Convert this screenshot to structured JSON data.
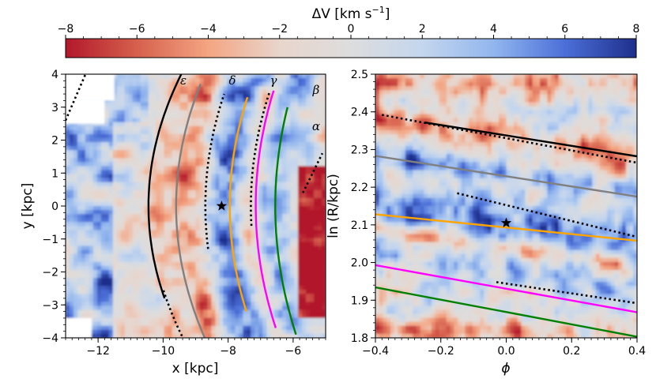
{
  "chart_data": [
    {
      "type": "colorbar",
      "label": "ΔV [km s⁻¹]",
      "label_main": "ΔV [km s",
      "label_exp": "−1",
      "label_close": "]",
      "range": [
        -8,
        8
      ],
      "ticks": [
        -8,
        -6,
        -4,
        -2,
        0,
        2,
        4,
        6,
        8
      ],
      "tick_labels": [
        "−8",
        "−6",
        "−4",
        "−2",
        "0",
        "2",
        "4",
        "6",
        "8"
      ],
      "colormap": [
        "#b2182b",
        "#d6604d",
        "#f4a582",
        "#e8d5cc",
        "#dddddd",
        "#c4d6ee",
        "#92b6ee",
        "#4b6fd8",
        "#1f2f8c"
      ]
    },
    {
      "type": "heatmap",
      "xlabel": "x [kpc]",
      "ylabel": "y [kpc]",
      "xlim": [
        -13,
        -5
      ],
      "ylim": [
        -4,
        4
      ],
      "xticks": [
        -12,
        -10,
        -8,
        -6
      ],
      "xtick_labels": [
        "−12",
        "−10",
        "−8",
        "−6"
      ],
      "yticks": [
        -4,
        -3,
        -2,
        -1,
        0,
        1,
        2,
        3,
        4
      ],
      "ytick_labels": [
        "−4",
        "−3",
        "−2",
        "−1",
        "0",
        "1",
        "2",
        "3",
        "4"
      ],
      "sun": {
        "x": -8.2,
        "y": 0
      },
      "arms": [
        {
          "name": "ε",
          "color": "#000000",
          "style": "solid",
          "x0": -10.45,
          "k": 0.063
        },
        {
          "name": "δ",
          "color": "#808080",
          "style": "solid",
          "x0": -9.6,
          "k": 0.055
        },
        {
          "name": "γ",
          "color": "#ffa500",
          "style": "solid",
          "x0": -7.95,
          "k": 0.05
        },
        {
          "name": "β",
          "color": "#ff00ff",
          "style": "solid",
          "x0": -7.15,
          "k": 0.045
        },
        {
          "name": "α",
          "color": "#008000",
          "style": "solid",
          "x0": -6.55,
          "k": 0.042
        }
      ],
      "dotted_tracks": [
        {
          "color": "#000000",
          "x0": -10.4,
          "k": 0.063
        },
        {
          "color": "#000000",
          "x0": -8.7,
          "k": 0.05
        },
        {
          "color": "#000000",
          "x0": -7.3,
          "k": 0.048
        }
      ],
      "labels": [
        "ε",
        "δ",
        "γ",
        "β",
        "α"
      ]
    },
    {
      "type": "heatmap",
      "xlabel": "ϕ",
      "ylabel": "ln (R/kpc)",
      "xlim": [
        -0.4,
        0.4
      ],
      "ylim": [
        1.8,
        2.5
      ],
      "xticks": [
        -0.4,
        -0.2,
        0.0,
        0.2,
        0.4
      ],
      "xtick_labels": [
        "−0.4",
        "−0.2",
        "0.0",
        "0.2",
        "0.4"
      ],
      "yticks": [
        1.8,
        1.9,
        2.0,
        2.1,
        2.2,
        2.3,
        2.4,
        2.5
      ],
      "ytick_labels": [
        "1.8",
        "1.9",
        "2.0",
        "2.1",
        "2.2",
        "2.3",
        "2.4",
        "2.5"
      ],
      "sun": {
        "phi": 0.0,
        "lnR": 2.105
      },
      "lines": [
        {
          "name": "ε",
          "color": "#000000",
          "style": "solid",
          "phi": [
            -0.25,
            0.4
          ],
          "lnR": [
            2.372,
            2.282
          ]
        },
        {
          "name": "δ",
          "color": "#808080",
          "style": "solid",
          "phi": [
            -0.4,
            0.4
          ],
          "lnR": [
            2.283,
            2.175
          ]
        },
        {
          "name": "γ",
          "color": "#ffa500",
          "style": "solid",
          "phi": [
            -0.4,
            0.4
          ],
          "lnR": [
            2.128,
            2.058
          ]
        },
        {
          "name": "β",
          "color": "#ff00ff",
          "style": "solid",
          "phi": [
            -0.4,
            0.4
          ],
          "lnR": [
            1.993,
            1.868
          ]
        },
        {
          "name": "α",
          "color": "#008000",
          "style": "solid",
          "phi": [
            -0.4,
            0.4
          ],
          "lnR": [
            1.934,
            1.803
          ]
        },
        {
          "name": "dotted-1",
          "color": "#000000",
          "style": "dotted",
          "phi": [
            -0.38,
            0.4
          ],
          "lnR": [
            2.392,
            2.265
          ]
        },
        {
          "name": "dotted-2",
          "color": "#000000",
          "style": "dotted",
          "phi": [
            -0.15,
            0.4
          ],
          "lnR": [
            2.184,
            2.068
          ]
        },
        {
          "name": "dotted-3",
          "color": "#000000",
          "style": "dotted",
          "phi": [
            -0.03,
            0.4
          ],
          "lnR": [
            1.948,
            1.892
          ]
        }
      ]
    }
  ]
}
